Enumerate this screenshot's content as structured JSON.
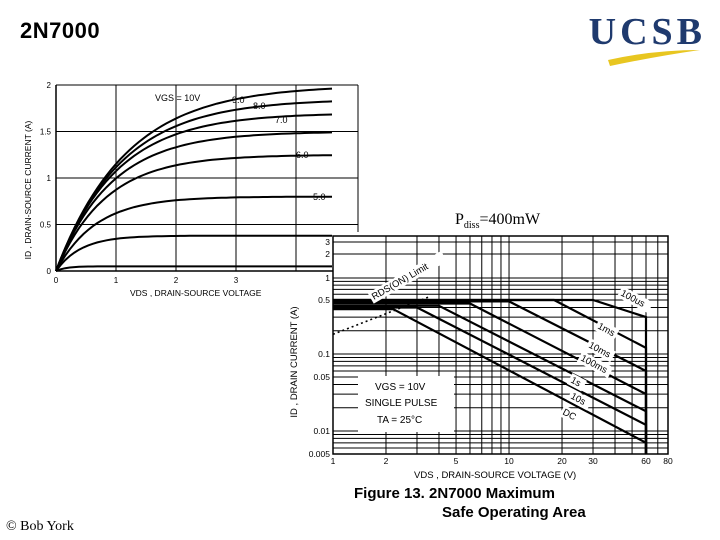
{
  "slide": {
    "title": "2N7000",
    "logo_text": "UCSB",
    "footer": "© Bob York",
    "colors": {
      "logo": "#1f3a6e",
      "accent": "#e8c620",
      "rule": "#e8c620",
      "curve": "#000000"
    }
  },
  "pdiss": {
    "prefix": "P",
    "sub": "diss",
    "value": "=400mW"
  },
  "caption": {
    "line1": "Figure 13. 2N7000 Maximum",
    "line2": "Safe Operating Area"
  },
  "chart_data": [
    {
      "type": "line",
      "title": "",
      "xlabel": "VDS , DRAIN-SOURCE VOLTAGE",
      "ylabel": "ID , DRAIN-SOURCE CURRENT (A)",
      "xlim": [
        0,
        5
      ],
      "ylim": [
        0,
        2
      ],
      "x_ticks": [
        "0",
        "1",
        "2",
        "3"
      ],
      "y_ticks": [
        "0",
        "0.5",
        "1",
        "1.5",
        "2"
      ],
      "grid": true,
      "series": [
        {
          "name": "VGS = 10V",
          "label": "VGS = 10V",
          "sat": 2.0,
          "vk": 2.8
        },
        {
          "name": "9.0",
          "label": "9.0",
          "sat": 1.85,
          "vk": 2.6
        },
        {
          "name": "8.0",
          "label": "8.0",
          "sat": 1.7,
          "vk": 2.4
        },
        {
          "name": "7.0",
          "label": "7.0",
          "sat": 1.5,
          "vk": 2.2
        },
        {
          "name": "6.0",
          "label": "6.0",
          "sat": 1.25,
          "vk": 2.0
        },
        {
          "name": "5.0",
          "label": "5.0",
          "sat": 0.8,
          "vk": 1.6
        },
        {
          "name": "",
          "label": "",
          "sat": 0.38,
          "vk": 1.0
        },
        {
          "name": "",
          "label": "",
          "sat": 0.05,
          "vk": 0.4
        }
      ]
    },
    {
      "type": "line",
      "title": "",
      "xlabel": "VDS , DRAIN-SOURCE VOLTAGE (V)",
      "ylabel": "ID , DRAIN CURRENT (A)",
      "xscale": "log",
      "yscale": "log",
      "xlim": [
        1,
        80
      ],
      "ylim": [
        0.005,
        3
      ],
      "x_ticks": [
        "1",
        "2",
        "5",
        "10",
        "20",
        "30",
        "60",
        "80"
      ],
      "y_ticks": [
        "3",
        "2",
        "1",
        "0.5",
        "0.1",
        "0.05",
        "0.01",
        "0.005"
      ],
      "grid": true,
      "annotations": [
        "RDS(ON) Limit",
        "100us",
        "1ms",
        "10ms",
        "100ms",
        "1s",
        "10s",
        "DC"
      ],
      "legend_text": [
        "VGS = 10V",
        "SINGLE PULSE",
        "TA = 25°C"
      ],
      "series": [
        {
          "name": "100us",
          "x": [
            1,
            30,
            60,
            60
          ],
          "y": [
            0.5,
            0.5,
            0.3,
            0.005
          ]
        },
        {
          "name": "1ms",
          "x": [
            1,
            18,
            60,
            60
          ],
          "y": [
            0.5,
            0.5,
            0.12,
            0.005
          ]
        },
        {
          "name": "10ms",
          "x": [
            1,
            10,
            60,
            60
          ],
          "y": [
            0.48,
            0.48,
            0.06,
            0.005
          ]
        },
        {
          "name": "100ms",
          "x": [
            1,
            6,
            60,
            60
          ],
          "y": [
            0.45,
            0.45,
            0.03,
            0.005
          ]
        },
        {
          "name": "1s",
          "x": [
            1,
            4,
            60,
            60
          ],
          "y": [
            0.42,
            0.42,
            0.018,
            0.005
          ]
        },
        {
          "name": "10s",
          "x": [
            1,
            3,
            60,
            60
          ],
          "y": [
            0.4,
            0.4,
            0.012,
            0.005
          ]
        },
        {
          "name": "DC",
          "x": [
            1,
            2.2,
            60,
            60
          ],
          "y": [
            0.38,
            0.38,
            0.007,
            0.005
          ]
        },
        {
          "name": "RDS(ON) Limit",
          "x": [
            1,
            3.5
          ],
          "y": [
            0.18,
            0.55
          ],
          "dash": true
        }
      ]
    }
  ]
}
